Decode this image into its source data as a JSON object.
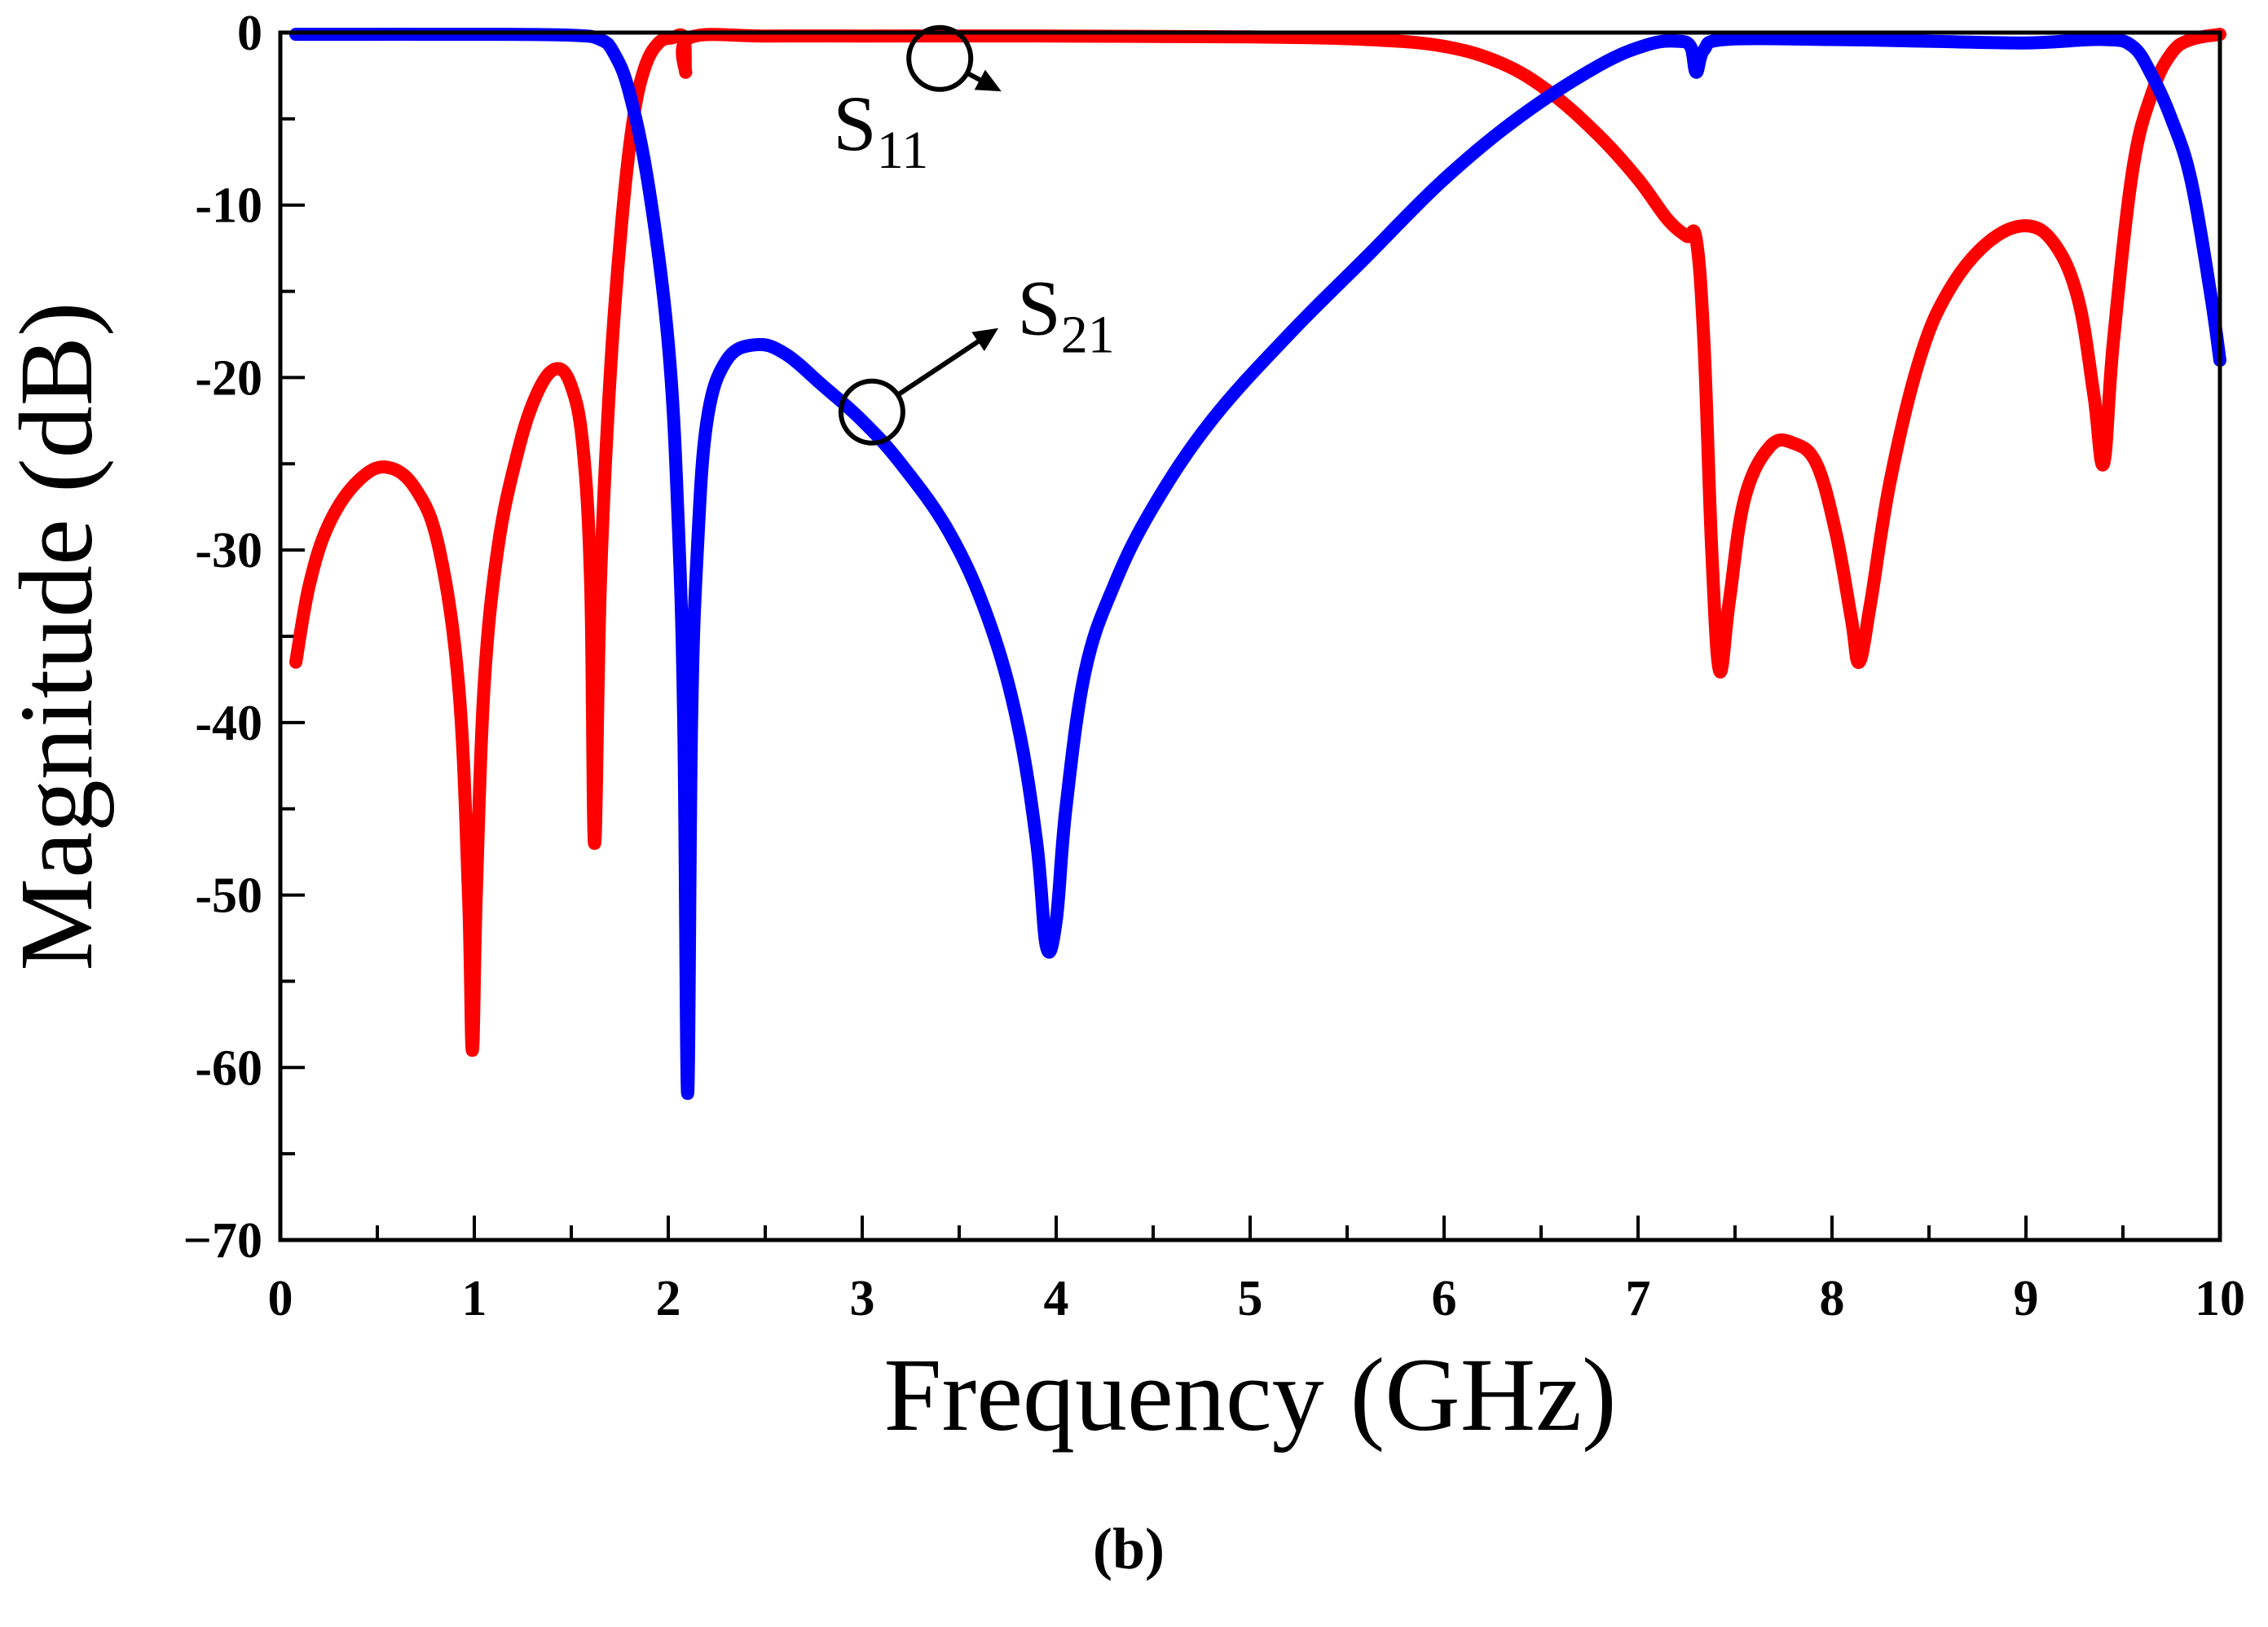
{
  "chart_data": {
    "type": "line",
    "title": "",
    "xlabel": "Frequency (GHz)",
    "ylabel": "Magnitude (dB)",
    "xlim": [
      0,
      10
    ],
    "ylim": [
      -70,
      0
    ],
    "xticks": [
      0,
      1,
      2,
      3,
      4,
      5,
      6,
      7,
      8,
      9,
      10
    ],
    "yticks": [
      0,
      -10,
      -20,
      -30,
      -40,
      -50,
      -60,
      -70
    ],
    "xtick_labels": [
      "0",
      "1",
      "2",
      "3",
      "4",
      "5",
      "6",
      "7",
      "8",
      "9",
      "10"
    ],
    "ytick_labels": [
      "0",
      "-10",
      "-20",
      "-30",
      "-40",
      "-50",
      "-60",
      "−70"
    ],
    "grid": false,
    "legend": "none",
    "panel_label": "(b)",
    "series": [
      {
        "name": "S11",
        "color": "#ff0000",
        "points": [
          [
            0.08,
            -36.5
          ],
          [
            0.15,
            -32
          ],
          [
            0.25,
            -28.5
          ],
          [
            0.4,
            -26
          ],
          [
            0.55,
            -25.2
          ],
          [
            0.7,
            -26.5
          ],
          [
            0.82,
            -30
          ],
          [
            0.92,
            -38
          ],
          [
            0.97,
            -50
          ],
          [
            0.99,
            -59
          ],
          [
            1.01,
            -50
          ],
          [
            1.05,
            -38
          ],
          [
            1.12,
            -30
          ],
          [
            1.22,
            -24.5
          ],
          [
            1.32,
            -21
          ],
          [
            1.42,
            -19.5
          ],
          [
            1.5,
            -20.5
          ],
          [
            1.56,
            -24
          ],
          [
            1.6,
            -32
          ],
          [
            1.62,
            -47
          ],
          [
            1.65,
            -32
          ],
          [
            1.7,
            -20
          ],
          [
            1.76,
            -11
          ],
          [
            1.82,
            -5
          ],
          [
            1.88,
            -2
          ],
          [
            1.95,
            -0.6
          ],
          [
            2.02,
            -0.3
          ],
          [
            2.08,
            -0.3
          ],
          [
            2.09,
            -2.3
          ],
          [
            2.11,
            -0.3
          ],
          [
            2.5,
            -0.2
          ],
          [
            3.0,
            -0.2
          ],
          [
            4.0,
            -0.2
          ],
          [
            5.0,
            -0.25
          ],
          [
            5.6,
            -0.4
          ],
          [
            6.0,
            -0.8
          ],
          [
            6.3,
            -1.8
          ],
          [
            6.55,
            -3.5
          ],
          [
            6.8,
            -6
          ],
          [
            7.0,
            -8.5
          ],
          [
            7.15,
            -10.8
          ],
          [
            7.25,
            -11.8
          ],
          [
            7.3,
            -12
          ],
          [
            7.34,
            -18
          ],
          [
            7.38,
            -30
          ],
          [
            7.42,
            -37
          ],
          [
            7.47,
            -33
          ],
          [
            7.55,
            -27
          ],
          [
            7.68,
            -24
          ],
          [
            7.8,
            -23.8
          ],
          [
            7.92,
            -25
          ],
          [
            8.02,
            -29
          ],
          [
            8.1,
            -34
          ],
          [
            8.14,
            -36.5
          ],
          [
            8.2,
            -33
          ],
          [
            8.3,
            -26
          ],
          [
            8.45,
            -19
          ],
          [
            8.6,
            -15
          ],
          [
            8.8,
            -12.2
          ],
          [
            9.0,
            -11.2
          ],
          [
            9.15,
            -12.3
          ],
          [
            9.27,
            -15.5
          ],
          [
            9.35,
            -21
          ],
          [
            9.4,
            -25
          ],
          [
            9.45,
            -18
          ],
          [
            9.55,
            -8
          ],
          [
            9.65,
            -3.5
          ],
          [
            9.75,
            -1.2
          ],
          [
            9.85,
            -0.4
          ],
          [
            10.0,
            -0.1
          ]
        ]
      },
      {
        "name": "S21",
        "color": "#0000ff",
        "points": [
          [
            0.08,
            -0.1
          ],
          [
            0.5,
            -0.1
          ],
          [
            1.0,
            -0.1
          ],
          [
            1.5,
            -0.15
          ],
          [
            1.65,
            -0.4
          ],
          [
            1.72,
            -1.2
          ],
          [
            1.8,
            -3.5
          ],
          [
            1.9,
            -9
          ],
          [
            2.0,
            -18
          ],
          [
            2.05,
            -28
          ],
          [
            2.08,
            -40
          ],
          [
            2.1,
            -61.5
          ],
          [
            2.12,
            -40
          ],
          [
            2.15,
            -30
          ],
          [
            2.2,
            -22.5
          ],
          [
            2.3,
            -19
          ],
          [
            2.45,
            -18.1
          ],
          [
            2.6,
            -18.6
          ],
          [
            2.8,
            -20.5
          ],
          [
            3.0,
            -22.5
          ],
          [
            3.2,
            -25
          ],
          [
            3.45,
            -29
          ],
          [
            3.65,
            -34
          ],
          [
            3.8,
            -40
          ],
          [
            3.9,
            -47
          ],
          [
            3.95,
            -53
          ],
          [
            4.0,
            -51.5
          ],
          [
            4.05,
            -45
          ],
          [
            4.15,
            -37
          ],
          [
            4.3,
            -32
          ],
          [
            4.5,
            -27.5
          ],
          [
            4.8,
            -22.5
          ],
          [
            5.2,
            -17.5
          ],
          [
            5.6,
            -13
          ],
          [
            6.0,
            -8.5
          ],
          [
            6.4,
            -4.8
          ],
          [
            6.8,
            -1.9
          ],
          [
            7.05,
            -0.7
          ],
          [
            7.2,
            -0.5
          ],
          [
            7.27,
            -0.8
          ],
          [
            7.3,
            -2.3
          ],
          [
            7.34,
            -1
          ],
          [
            7.45,
            -0.4
          ],
          [
            8.0,
            -0.4
          ],
          [
            8.5,
            -0.5
          ],
          [
            9.0,
            -0.6
          ],
          [
            9.4,
            -0.4
          ],
          [
            9.55,
            -0.8
          ],
          [
            9.65,
            -2.5
          ],
          [
            9.75,
            -5
          ],
          [
            9.85,
            -8.5
          ],
          [
            9.95,
            -15
          ],
          [
            10.0,
            -19
          ]
        ]
      }
    ],
    "annotations": [
      {
        "label": "S",
        "sub": "11",
        "series": "S11",
        "point": [
          3.4,
          -1.5
        ],
        "text_at": [
          2.85,
          -6.8
        ]
      },
      {
        "label": "S",
        "sub": "21",
        "series": "S21",
        "point": [
          3.05,
          -22
        ],
        "text_at": [
          3.8,
          -17.5
        ]
      }
    ]
  }
}
